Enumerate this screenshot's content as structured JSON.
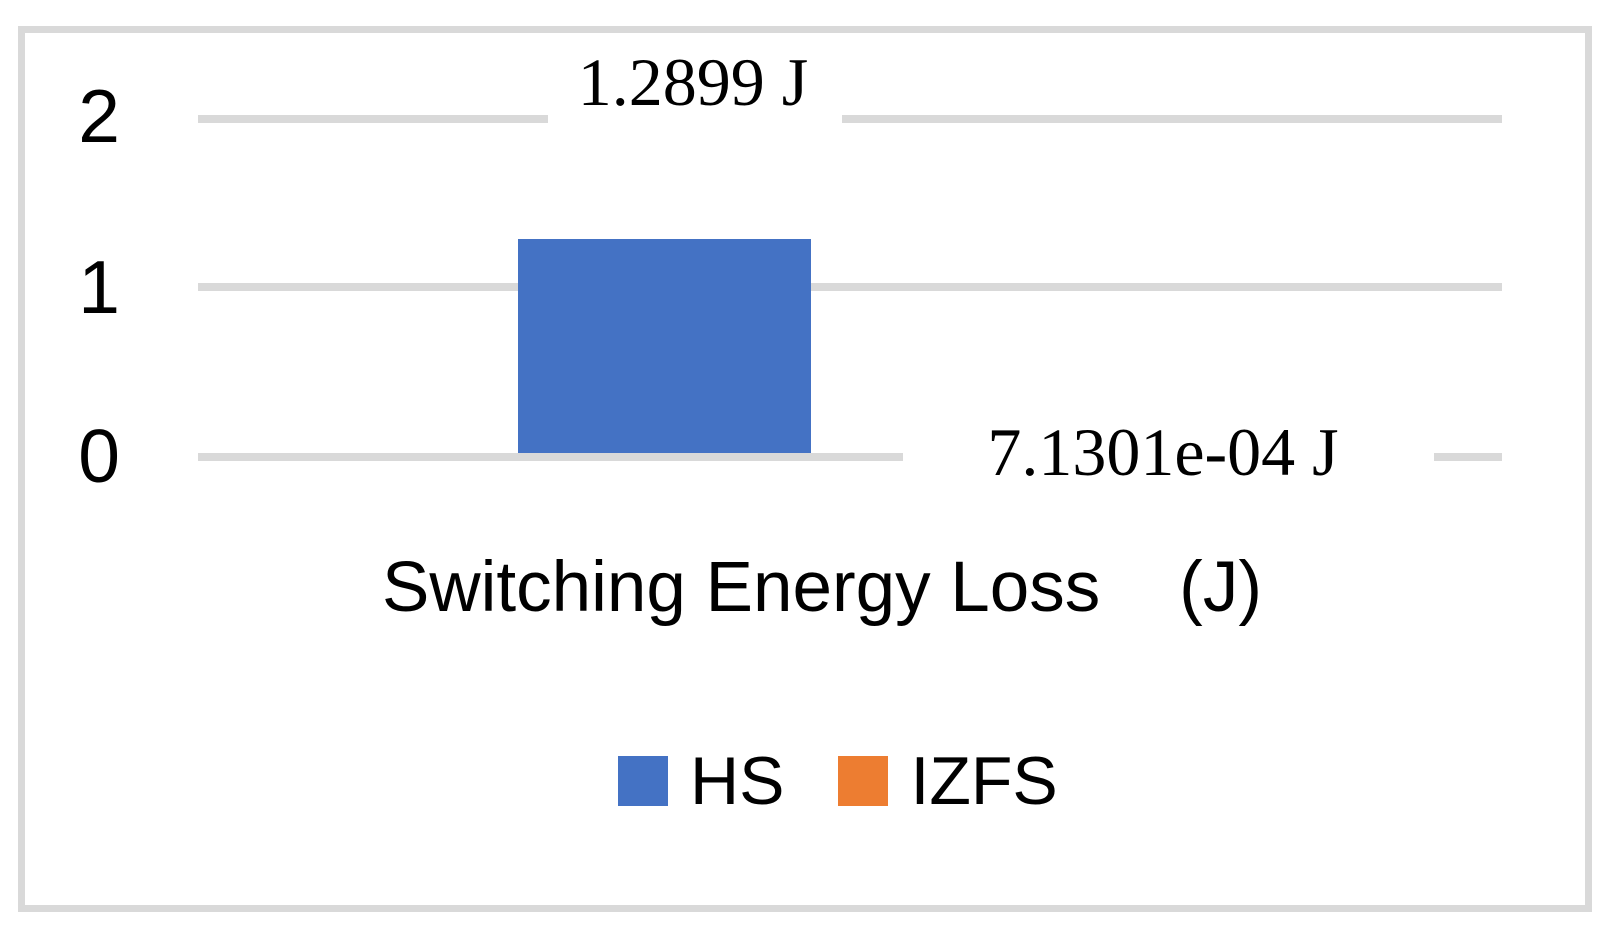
{
  "chart_data": {
    "type": "bar",
    "title": "Switching Energy Loss    (J)",
    "categories": [
      ""
    ],
    "series": [
      {
        "name": "HS",
        "value": 1.2899,
        "label": "1.2899 J",
        "color": "#4472C4"
      },
      {
        "name": "IZFS",
        "value": 0.00071301,
        "label": "7.1301e-04 J",
        "color": "#ED7D31"
      }
    ],
    "xlabel": "",
    "ylabel": "",
    "ylim": [
      0,
      2.15
    ],
    "yticks": [
      "0",
      "1",
      "2"
    ],
    "grid": true,
    "gridline_color": "#D9D9D9",
    "frame_color": "#D9D9D9",
    "legend_position": "bottom-center",
    "value_unit": "J"
  }
}
